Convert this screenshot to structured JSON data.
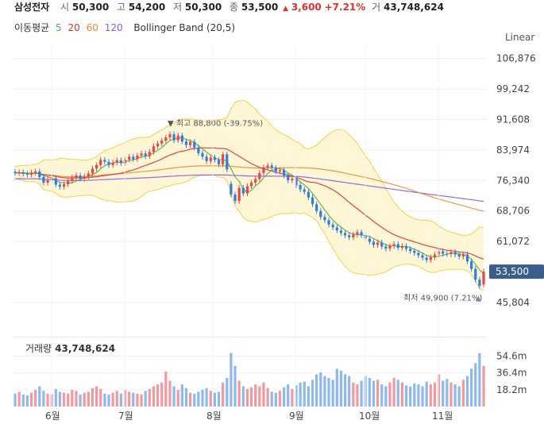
{
  "header": {
    "name": "삼성전자",
    "open_label": "시",
    "open": "50,300",
    "high_label": "고",
    "high": "54,200",
    "low_label": "저",
    "low": "50,300",
    "close_label": "종",
    "close": "53,500",
    "change_arrow": "▲",
    "change": "3,600",
    "change_pct": "+7.21%",
    "volume_label": "거",
    "volume": "43,748,624"
  },
  "overlay": {
    "ma_label": "이동평균",
    "ma_periods": [
      {
        "period": "5",
        "color": "#4caf50"
      },
      {
        "period": "20",
        "color": "#e0312e"
      },
      {
        "period": "60",
        "color": "#f08a30"
      },
      {
        "period": "120",
        "color": "#8a5be0"
      }
    ],
    "bollinger_label": "Bollinger Band (20,5)"
  },
  "scale_toggle": "Linear",
  "colors": {
    "up": "#e8474a",
    "down": "#2f7de1",
    "band_fill": "#fff6d6",
    "band_line": "#f5d04a",
    "vol_up": "#ef9aa0",
    "vol_down": "#8fb8ee"
  },
  "chart_data": {
    "type": "candlestick",
    "y_axis": {
      "ticks": [
        "106,876",
        "99,242",
        "91,608",
        "83,974",
        "76,340",
        "68,706",
        "61,072",
        "45,804"
      ],
      "range": [
        42000,
        110000
      ]
    },
    "x_axis": {
      "ticks": [
        "6월",
        "7월",
        "8월",
        "9월",
        "10월",
        "11월"
      ]
    },
    "annotations": {
      "high": {
        "label": "최고",
        "value": "88,800",
        "pct": "(-39.75%)"
      },
      "low": {
        "label": "최저",
        "value": "49,900",
        "pct": "(7.21%)"
      },
      "last_price": "53,500"
    },
    "closes": [
      78200,
      78400,
      78000,
      77800,
      78300,
      78600,
      77200,
      75800,
      76400,
      76900,
      75300,
      74800,
      75400,
      76200,
      77100,
      77600,
      76800,
      77300,
      78100,
      79300,
      80200,
      81500,
      81000,
      80200,
      80800,
      81400,
      80700,
      81600,
      82300,
      81700,
      82600,
      83100,
      82400,
      83500,
      84900,
      85600,
      86300,
      87100,
      87900,
      86400,
      87600,
      86100,
      85200,
      86000,
      84600,
      83200,
      82300,
      81200,
      82100,
      81500,
      80400,
      82900,
      79100,
      72800,
      71200,
      74500,
      73100,
      74900,
      75800,
      76700,
      78200,
      79600,
      80100,
      79500,
      78600,
      78900,
      77600,
      76400,
      76800,
      75200,
      74100,
      73500,
      72100,
      70400,
      68700,
      67200,
      66400,
      65300,
      64600,
      63800,
      63200,
      62600,
      62100,
      62800,
      63400,
      62600,
      61800,
      61000,
      60200,
      60800,
      59800,
      59300,
      59900,
      60400,
      59500,
      59900,
      59200,
      58700,
      58200,
      57600,
      57000,
      56400,
      57100,
      57800,
      58600,
      58000,
      57900,
      58400,
      57800,
      57300,
      57800,
      56100,
      54200,
      51500,
      49900,
      53500
    ],
    "opens": [
      78500,
      78200,
      78400,
      78000,
      77800,
      78300,
      78600,
      77200,
      75800,
      76400,
      76900,
      75300,
      74800,
      75400,
      76200,
      77100,
      77600,
      76800,
      77300,
      78100,
      79300,
      80200,
      81500,
      81000,
      80200,
      80800,
      81400,
      80700,
      81600,
      82300,
      81700,
      82600,
      83100,
      82400,
      83500,
      84900,
      85600,
      86300,
      87100,
      87900,
      86400,
      87600,
      86100,
      85200,
      86000,
      84600,
      83200,
      82300,
      81200,
      82100,
      81500,
      80400,
      82900,
      75500,
      72800,
      71200,
      74500,
      73100,
      74900,
      75800,
      76700,
      78200,
      79600,
      80100,
      79500,
      78600,
      78900,
      77600,
      76400,
      76800,
      75200,
      74100,
      73500,
      72100,
      70400,
      68700,
      67200,
      66400,
      65300,
      64600,
      63800,
      63200,
      62600,
      62100,
      62800,
      63400,
      62600,
      61800,
      61000,
      60200,
      60800,
      59800,
      59300,
      59900,
      60400,
      59500,
      59900,
      59200,
      58700,
      58200,
      57600,
      57000,
      56400,
      57100,
      57800,
      58600,
      58000,
      57900,
      58400,
      57800,
      57300,
      57800,
      56100,
      54200,
      51500,
      50300
    ],
    "volume_ticks": [
      "54.6m",
      "36.4m",
      "18.2m"
    ],
    "volumes": [
      14,
      16,
      13,
      12,
      15,
      18,
      22,
      17,
      14,
      13,
      19,
      16,
      15,
      14,
      18,
      17,
      13,
      15,
      16,
      20,
      22,
      19,
      14,
      13,
      15,
      17,
      14,
      18,
      16,
      15,
      14,
      13,
      17,
      19,
      22,
      24,
      26,
      38,
      28,
      22,
      18,
      24,
      20,
      15,
      14,
      16,
      18,
      20,
      17,
      15,
      16,
      26,
      31,
      58,
      44,
      28,
      22,
      19,
      21,
      24,
      22,
      26,
      20,
      16,
      15,
      17,
      21,
      24,
      19,
      23,
      26,
      27,
      22,
      29,
      35,
      37,
      33,
      31,
      29,
      41,
      39,
      35,
      33,
      26,
      24,
      28,
      33,
      31,
      28,
      29,
      24,
      22,
      26,
      31,
      29,
      26,
      23,
      22,
      25,
      24,
      22,
      27,
      24,
      26,
      35,
      28,
      30,
      26,
      24,
      22,
      29,
      33,
      41,
      47,
      58,
      44
    ],
    "vol_range": [
      0,
      62
    ]
  }
}
